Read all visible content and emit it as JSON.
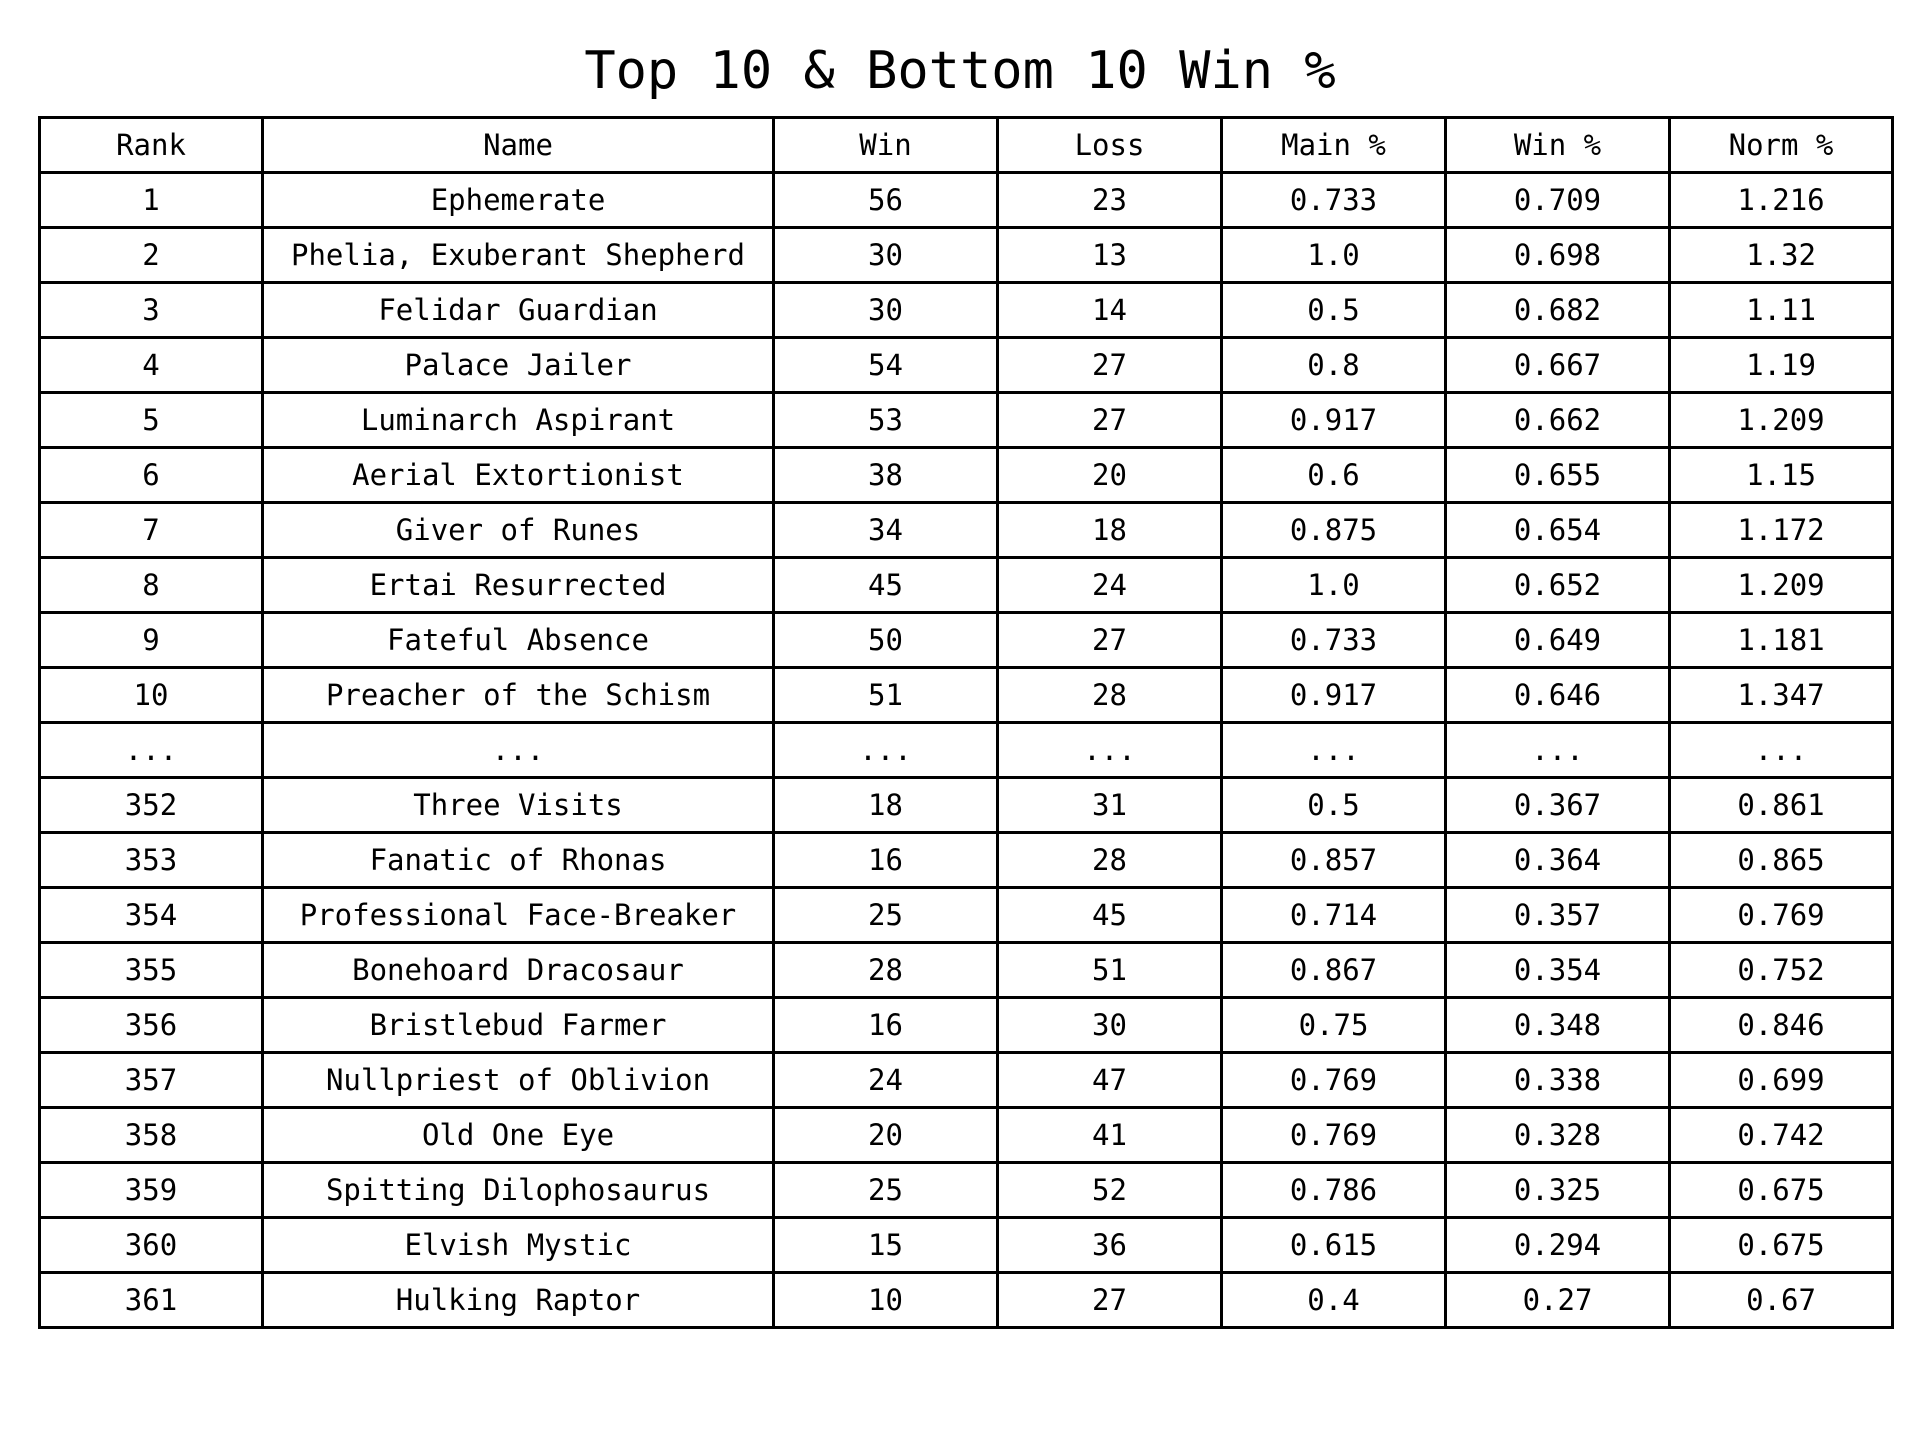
{
  "chart_data": {
    "type": "table",
    "title": "Top 10 & Bottom 10 Win %",
    "columns": [
      "Rank",
      "Name",
      "Win",
      "Loss",
      "Main %",
      "Win %",
      "Norm %"
    ],
    "rows": [
      [
        "1",
        "Ephemerate",
        "56",
        "23",
        "0.733",
        "0.709",
        "1.216"
      ],
      [
        "2",
        "Phelia, Exuberant Shepherd",
        "30",
        "13",
        "1.0",
        "0.698",
        "1.32"
      ],
      [
        "3",
        "Felidar Guardian",
        "30",
        "14",
        "0.5",
        "0.682",
        "1.11"
      ],
      [
        "4",
        "Palace Jailer",
        "54",
        "27",
        "0.8",
        "0.667",
        "1.19"
      ],
      [
        "5",
        "Luminarch Aspirant",
        "53",
        "27",
        "0.917",
        "0.662",
        "1.209"
      ],
      [
        "6",
        "Aerial Extortionist",
        "38",
        "20",
        "0.6",
        "0.655",
        "1.15"
      ],
      [
        "7",
        "Giver of Runes",
        "34",
        "18",
        "0.875",
        "0.654",
        "1.172"
      ],
      [
        "8",
        "Ertai Resurrected",
        "45",
        "24",
        "1.0",
        "0.652",
        "1.209"
      ],
      [
        "9",
        "Fateful Absence",
        "50",
        "27",
        "0.733",
        "0.649",
        "1.181"
      ],
      [
        "10",
        "Preacher of the Schism",
        "51",
        "28",
        "0.917",
        "0.646",
        "1.347"
      ],
      [
        "...",
        "...",
        "...",
        "...",
        "...",
        "...",
        "..."
      ],
      [
        "352",
        "Three Visits",
        "18",
        "31",
        "0.5",
        "0.367",
        "0.861"
      ],
      [
        "353",
        "Fanatic of Rhonas",
        "16",
        "28",
        "0.857",
        "0.364",
        "0.865"
      ],
      [
        "354",
        "Professional Face-Breaker",
        "25",
        "45",
        "0.714",
        "0.357",
        "0.769"
      ],
      [
        "355",
        "Bonehoard Dracosaur",
        "28",
        "51",
        "0.867",
        "0.354",
        "0.752"
      ],
      [
        "356",
        "Bristlebud Farmer",
        "16",
        "30",
        "0.75",
        "0.348",
        "0.846"
      ],
      [
        "357",
        "Nullpriest of Oblivion",
        "24",
        "47",
        "0.769",
        "0.338",
        "0.699"
      ],
      [
        "358",
        "Old One Eye",
        "20",
        "41",
        "0.769",
        "0.328",
        "0.742"
      ],
      [
        "359",
        "Spitting Dilophosaurus",
        "25",
        "52",
        "0.786",
        "0.325",
        "0.675"
      ],
      [
        "360",
        "Elvish Mystic",
        "15",
        "36",
        "0.615",
        "0.294",
        "0.675"
      ],
      [
        "361",
        "Hulking Raptor",
        "10",
        "27",
        "0.4",
        "0.27",
        "0.67"
      ]
    ]
  }
}
